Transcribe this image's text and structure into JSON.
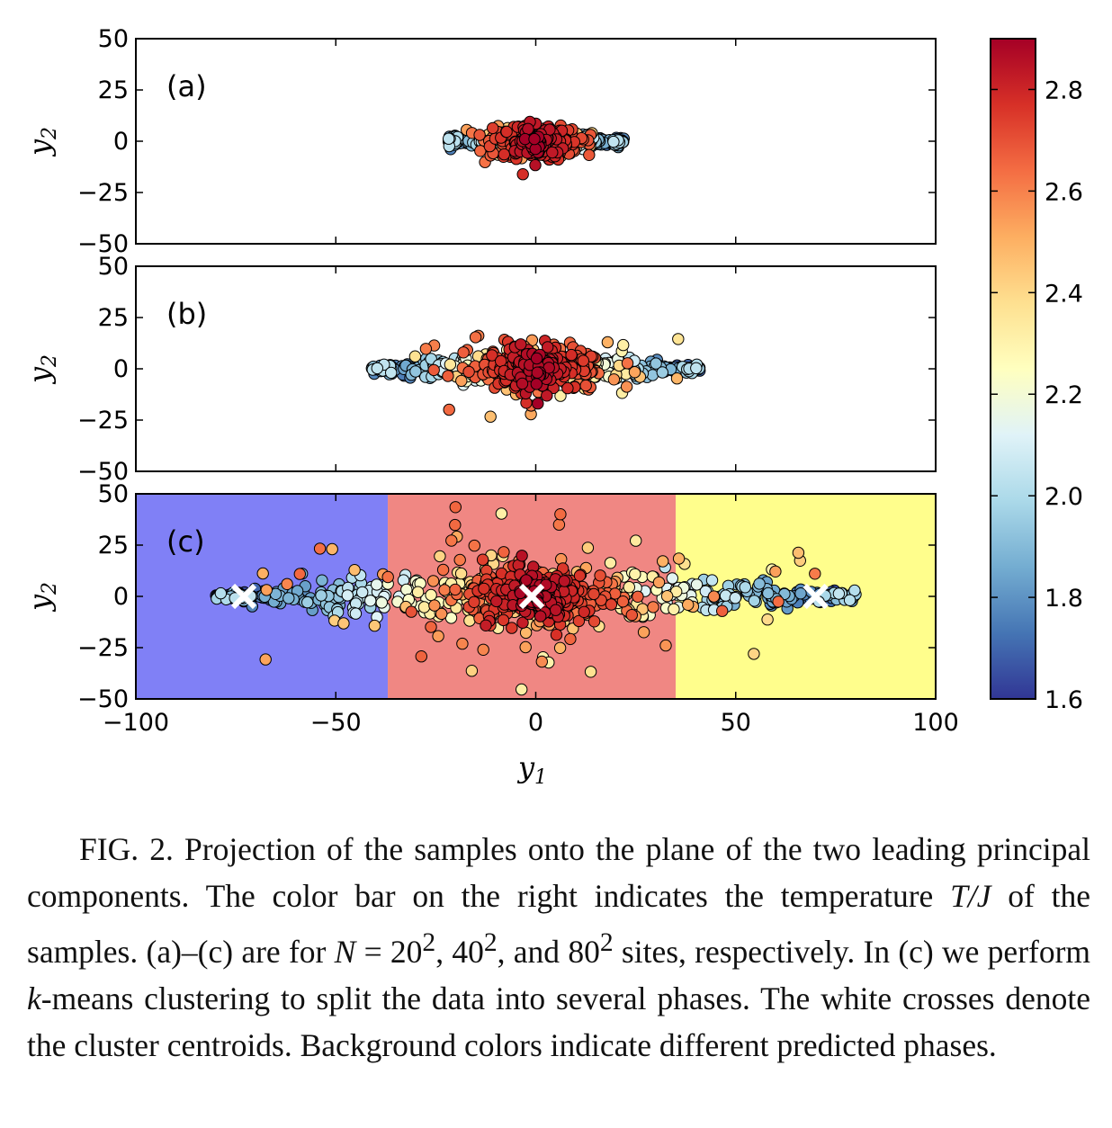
{
  "chart_data": {
    "type": "scatter",
    "panels": [
      {
        "label": "(a)",
        "xlim": [
          -100,
          100
        ],
        "ylim": [
          -50,
          50
        ],
        "ylabel": "y2",
        "yticks": [
          "50",
          "25",
          "0",
          "−25",
          "−50"
        ],
        "y1_extent": [
          -22,
          22
        ],
        "y2_extent": [
          -12,
          12
        ],
        "background": null
      },
      {
        "label": "(b)",
        "xlim": [
          -100,
          100
        ],
        "ylim": [
          -50,
          50
        ],
        "ylabel": "y2",
        "yticks": [
          "50",
          "25",
          "0",
          "−25",
          "−50"
        ],
        "y1_extent": [
          -41,
          41
        ],
        "y2_extent": [
          -22,
          20
        ],
        "background": null
      },
      {
        "label": "(c)",
        "xlim": [
          -100,
          100
        ],
        "ylim": [
          -50,
          50
        ],
        "ylabel": "y2",
        "yticks": [
          "50",
          "25",
          "0",
          "−25",
          "−50"
        ],
        "y1_extent": [
          -80,
          79
        ],
        "y2_extent": [
          -33,
          41
        ],
        "background_regions": [
          {
            "from": -100,
            "to": -37,
            "color": "#8080f6"
          },
          {
            "from": -37,
            "to": 35,
            "color": "#f08783"
          },
          {
            "from": 35,
            "to": 100,
            "color": "#fffe8c"
          }
        ],
        "centroids": [
          {
            "y1": -73,
            "y2": 0
          },
          {
            "y1": -1,
            "y2": 0
          },
          {
            "y1": 70,
            "y2": 0
          }
        ]
      }
    ],
    "xlabel": "y1",
    "xticks": [
      "−100",
      "−50",
      "0",
      "50",
      "100"
    ],
    "xtick_values": [
      -100,
      -50,
      0,
      50,
      100
    ],
    "ytick_values": [
      50,
      25,
      0,
      -25,
      -50
    ],
    "colorbar": {
      "range": [
        1.6,
        2.9
      ],
      "ticks": [
        "2.8",
        "2.6",
        "2.4",
        "2.2",
        "2.0",
        "1.8",
        "1.6"
      ],
      "tick_values": [
        2.8,
        2.6,
        2.4,
        2.2,
        2.0,
        1.8,
        1.6
      ],
      "colormap": [
        "#313695",
        "#4575b4",
        "#74add1",
        "#abd9e9",
        "#e0f3f8",
        "#ffffbf",
        "#fee090",
        "#fdae61",
        "#f46d43",
        "#d73027",
        "#a50026"
      ]
    }
  },
  "caption": {
    "fig": "FIG. 2.",
    "text_1": " Projection of the samples onto the plane of the two leading principal components. The color bar on the right indicates the temperature ",
    "tj": "T/J",
    "text_2": " of the samples. (a)–(c) are for ",
    "n": "N",
    "text_3": " = 20",
    "s1": "2",
    "text_4": ", 40",
    "s2": "2",
    "text_5": ", and 80",
    "s3": "2",
    "text_6": " sites, respectively. In (c) we perform ",
    "k": "k",
    "text_7": "-means clustering to split the data into several phases. The white crosses denote the cluster centroids. Background colors indicate different predicted phases."
  }
}
